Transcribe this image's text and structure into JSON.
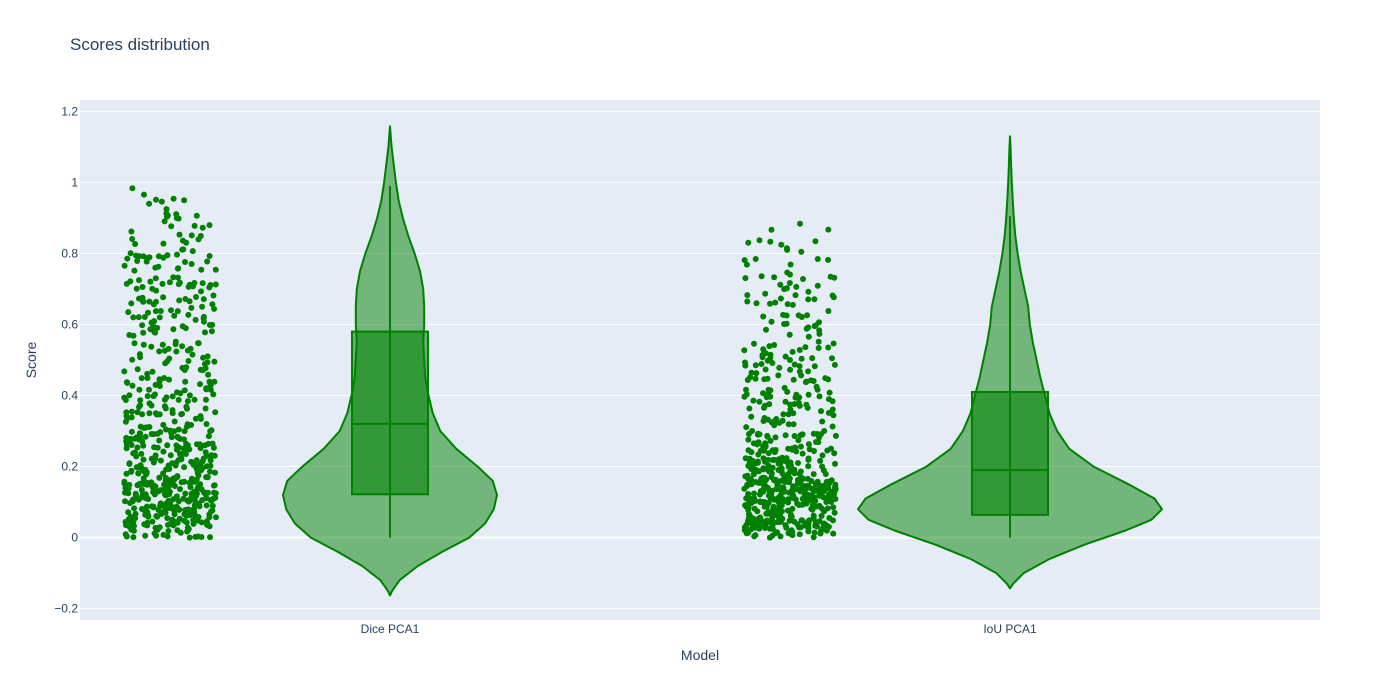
{
  "chart_data": {
    "type": "violin",
    "title": "Scores distribution",
    "xlabel": "Model",
    "ylabel": "Score",
    "ylim": [
      -0.232,
      1.232
    ],
    "yticks": [
      -0.2,
      0,
      0.2,
      0.4,
      0.6,
      0.8,
      1,
      1.2
    ],
    "ytick_labels": [
      "−0.2",
      "0",
      "0.2",
      "0.4",
      "0.6",
      "0.8",
      "1",
      "1.2"
    ],
    "categories": [
      "Dice PCA1",
      "IoU PCA1"
    ],
    "grid": true,
    "points": "all (jittered, left of each violin)",
    "colors": {
      "plot_bg": "#e5ecf6",
      "grid": "#ffffff",
      "trace": "#008000",
      "violin_fill": "rgba(0,128,0,0.5)",
      "box_fill": "rgba(0,128,0,0.55)",
      "text": "#2a3f5f"
    },
    "series": [
      {
        "category": "Dice PCA1",
        "n_points": 600,
        "box": {
          "min": 0,
          "q1": 0.122,
          "median": 0.32,
          "q3": 0.58,
          "max": 0.99
        },
        "kde_range": [
          -0.163,
          1.158
        ],
        "density": [
          [
            -0.163,
            0.0
          ],
          [
            -0.15,
            0.02
          ],
          [
            -0.12,
            0.09
          ],
          [
            -0.08,
            0.26
          ],
          [
            -0.04,
            0.49
          ],
          [
            0.0,
            0.74
          ],
          [
            0.04,
            0.89
          ],
          [
            0.08,
            0.97
          ],
          [
            0.12,
            1.0
          ],
          [
            0.16,
            0.96
          ],
          [
            0.2,
            0.82
          ],
          [
            0.25,
            0.62
          ],
          [
            0.3,
            0.47
          ],
          [
            0.35,
            0.4
          ],
          [
            0.4,
            0.36
          ],
          [
            0.45,
            0.33
          ],
          [
            0.5,
            0.32
          ],
          [
            0.55,
            0.31
          ],
          [
            0.6,
            0.32
          ],
          [
            0.65,
            0.32
          ],
          [
            0.7,
            0.31
          ],
          [
            0.75,
            0.28
          ],
          [
            0.8,
            0.23
          ],
          [
            0.85,
            0.17
          ],
          [
            0.9,
            0.12
          ],
          [
            0.95,
            0.08
          ],
          [
            1.0,
            0.055
          ],
          [
            1.05,
            0.035
          ],
          [
            1.1,
            0.015
          ],
          [
            1.158,
            0.0
          ]
        ]
      },
      {
        "category": "IoU PCA1",
        "n_points": 600,
        "box": {
          "min": 0,
          "q1": 0.064,
          "median": 0.19,
          "q3": 0.41,
          "max": 0.905
        },
        "kde_range": [
          -0.143,
          1.13
        ],
        "density": [
          [
            -0.143,
            0.0
          ],
          [
            -0.13,
            0.02
          ],
          [
            -0.1,
            0.09
          ],
          [
            -0.06,
            0.26
          ],
          [
            -0.02,
            0.49
          ],
          [
            0.02,
            0.76
          ],
          [
            0.05,
            0.93
          ],
          [
            0.08,
            1.0
          ],
          [
            0.11,
            0.95
          ],
          [
            0.15,
            0.78
          ],
          [
            0.2,
            0.55
          ],
          [
            0.25,
            0.39
          ],
          [
            0.3,
            0.31
          ],
          [
            0.35,
            0.26
          ],
          [
            0.4,
            0.23
          ],
          [
            0.45,
            0.2
          ],
          [
            0.5,
            0.175
          ],
          [
            0.55,
            0.15
          ],
          [
            0.6,
            0.13
          ],
          [
            0.65,
            0.12
          ],
          [
            0.7,
            0.095
          ],
          [
            0.75,
            0.07
          ],
          [
            0.8,
            0.05
          ],
          [
            0.85,
            0.035
          ],
          [
            0.9,
            0.025
          ],
          [
            0.95,
            0.018
          ],
          [
            1.0,
            0.012
          ],
          [
            1.05,
            0.007
          ],
          [
            1.1,
            0.003
          ],
          [
            1.13,
            0.0
          ]
        ]
      }
    ]
  }
}
